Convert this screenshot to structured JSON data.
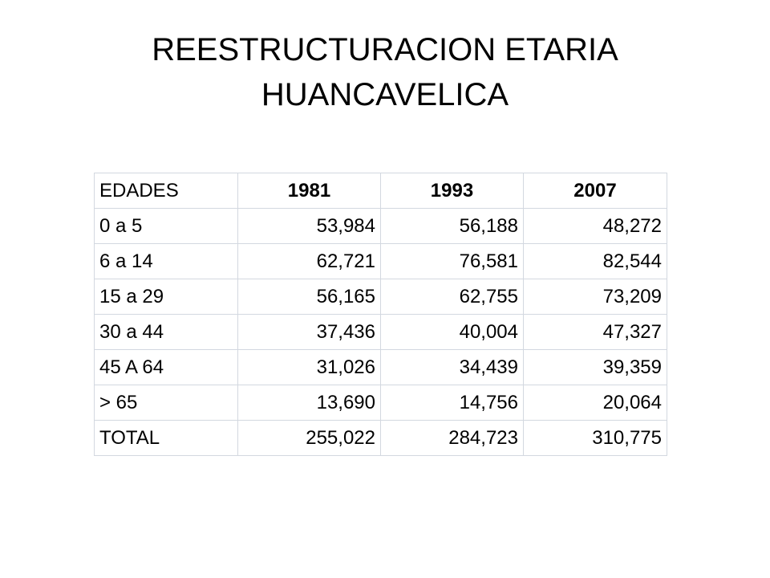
{
  "title": {
    "line1": "REESTRUCTURACION ETARIA",
    "line2": "HUANCAVELICA"
  },
  "table": {
    "headers": [
      "EDADES",
      "1981",
      "1993",
      "2007"
    ],
    "rows": [
      [
        "0  a 5",
        "53,984",
        "56,188",
        "48,272"
      ],
      [
        "6 a 14",
        "62,721",
        "76,581",
        "82,544"
      ],
      [
        "15 a 29",
        "56,165",
        "62,755",
        "73,209"
      ],
      [
        "30 a 44",
        "37,436",
        "40,004",
        "47,327"
      ],
      [
        "45 A 64",
        "31,026",
        "34,439",
        "39,359"
      ],
      [
        ">  65",
        "13,690",
        "14,756",
        "20,064"
      ],
      [
        "TOTAL",
        "255,022",
        "284,723",
        "310,775"
      ]
    ]
  }
}
